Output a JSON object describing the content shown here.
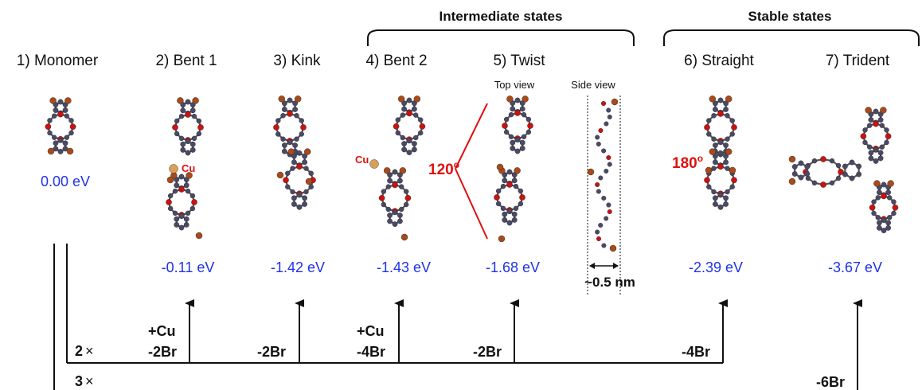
{
  "groups": {
    "intermediate": "Intermediate states",
    "stable": "Stable states"
  },
  "states": [
    {
      "title": "1) Monomer",
      "energy": "0.00 eV"
    },
    {
      "title": "2) Bent 1",
      "energy": "-0.11 eV"
    },
    {
      "title": "3) Kink",
      "energy": "-1.42 eV"
    },
    {
      "title": "4) Bent 2",
      "energy": "-1.43 eV"
    },
    {
      "title": "5) Twist",
      "energy": "-1.68 eV"
    },
    {
      "title": "6) Straight",
      "energy": "-2.39 eV"
    },
    {
      "title": "7) Trident",
      "energy": "-3.67 eV"
    }
  ],
  "views": {
    "top": "Top view",
    "side": "Side view"
  },
  "annotations": {
    "angle_twist": "120",
    "angle_straight": "180",
    "degree": "o",
    "cu_bent1": "Cu",
    "cu_bent2": "Cu",
    "side_width": "~0.5 nm"
  },
  "reactions": {
    "line2_label": "2",
    "line3_label": "3",
    "times": "×",
    "bent1_top": "+Cu",
    "bent1_bottom": "-2Br",
    "kink": "-2Br",
    "bent2_top": "+Cu",
    "bent2_bottom": "-4Br",
    "twist": "-2Br",
    "straight": "-4Br",
    "trident": "-6Br"
  },
  "colors": {
    "energy": "#1f33e6",
    "angle": "#e01010",
    "carbon": "#4a4a66",
    "oxygen": "#cc1111",
    "bromine": "#a84a1a",
    "copper": "#d9a05a"
  }
}
